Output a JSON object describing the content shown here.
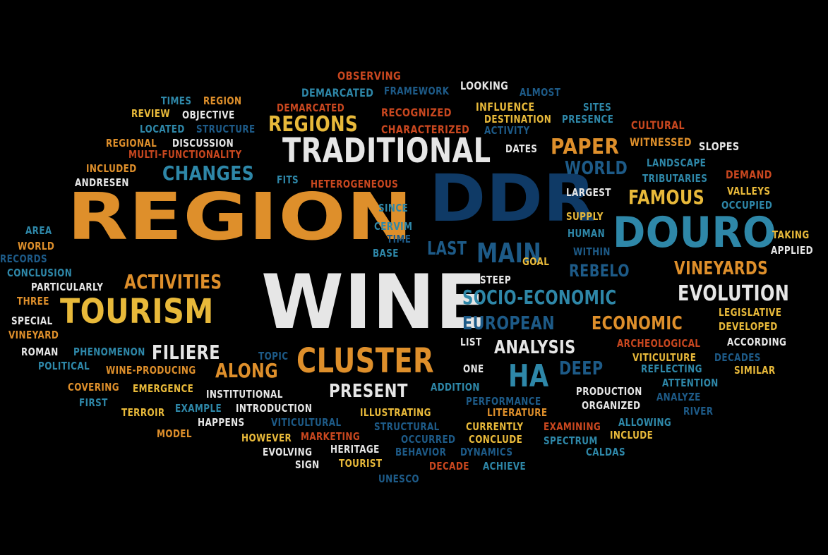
{
  "words": [
    "REGION",
    "WINE",
    "DDR",
    "DOURO",
    "TRADITIONAL",
    "TOURISM",
    "CLUSTER",
    "MAIN",
    "HA",
    "REGIONS",
    "CHANGES",
    "PAPER",
    "ACTIVITIES",
    "FAMOUS",
    "EVOLUTION",
    "FILIERE",
    "PRESENT",
    "ANALYSIS",
    "VINEYARDS",
    "SOCIO-ECONOMIC",
    "EUROPEAN",
    "ECONOMIC",
    "WORLD",
    "REBELO",
    "DEEP",
    "LAST",
    "ALONG",
    "OBSERVING",
    "DEMARCATED",
    "FRAMEWORK",
    "LOOKING",
    "ALMOST",
    "TIMES",
    "REGION",
    "REVIEW",
    "OBJECTIVE",
    "INFLUENCE",
    "DEMARCATED",
    "RECOGNIZED",
    "SITES",
    "DESTINATION",
    "PRESENCE",
    "LOCATED",
    "STRUCTURE",
    "CHARACTERIZED",
    "ACTIVITY",
    "CULTURAL",
    "REGIONAL",
    "DISCUSSION",
    "DATES",
    "WITNESSED",
    "SLOPES",
    "MULTI-FUNCTIONALITY",
    "LANDSCAPE",
    "INCLUDED",
    "TRIBUTARIES",
    "DEMAND",
    "ANDRESEN",
    "FITS",
    "HETEROGENEOUS",
    "LARGEST",
    "VALLEYS",
    "OCCUPIED",
    "SUPPLY",
    "SINCE",
    "AREA",
    "CERVIM",
    "TIME",
    "HUMAN",
    "TAKING",
    "WORLD",
    "BASE",
    "WITHIN",
    "APPLIED",
    "RECORDS",
    "CONCLUSION",
    "STEEP",
    "GOAL",
    "PARTICULARLY",
    "THREE",
    "LEGISLATIVE",
    "SPECIAL",
    "DEVELOPED",
    "VINEYARD",
    "LIST",
    "ACCORDING",
    "ROMAN",
    "PHENOMENON",
    "TOPIC",
    "ARCHEOLOGICAL",
    "VITICULTURE",
    "DECADES",
    "POLITICAL",
    "WINE-PRODUCING",
    "ONE",
    "REFLECTING",
    "SIMILAR",
    "ATTENTION",
    "COVERING",
    "EMERGENCE",
    "ADDITION",
    "PRODUCTION",
    "FIRST",
    "INSTITUTIONAL",
    "PERFORMANCE",
    "ANALYZE",
    "ORGANIZED",
    "TERROIR",
    "EXAMPLE",
    "INTRODUCTION",
    "ILLUSTRATING",
    "LITERATURE",
    "RIVER",
    "HAPPENS",
    "VITICULTURAL",
    "CURRENTLY",
    "EXAMINING",
    "ALLOWING",
    "MODEL",
    "STRUCTURAL",
    "HOWEVER",
    "MARKETING",
    "OCCURRED",
    "CONCLUDE",
    "SPECTRUM",
    "INCLUDE",
    "EVOLVING",
    "HERITAGE",
    "BEHAVIOR",
    "DYNAMICS",
    "CALDAS",
    "SIGN",
    "TOURIST",
    "DECADE",
    "ACHIEVE",
    "UNESCO"
  ],
  "palette": {
    "background": "#000000",
    "white": "#e6e6e6",
    "orange": "#de8f2b",
    "yellow": "#e8b93a",
    "red_orange": "#c9471f",
    "light_blue": "#2e87a8",
    "navy": "#0f3a66",
    "mid_blue": "#1d5a87"
  }
}
